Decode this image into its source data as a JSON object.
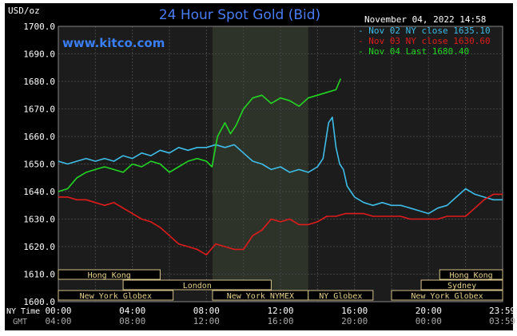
{
  "chart_data": {
    "type": "line",
    "title": "24 Hour Spot Gold (Bid)",
    "brand": "www.kitco.com",
    "ylabel": "USD/oz",
    "timestamp": "November 04, 2022 14:58",
    "ylim": [
      1600,
      1700
    ],
    "xlim": [
      0,
      24
    ],
    "y_ticks": [
      "1700.0",
      "1690.0",
      "1680.0",
      "1670.0",
      "1660.0",
      "1650.0",
      "1640.0",
      "1630.0",
      "1620.0",
      "1610.0",
      "1600.0"
    ],
    "y_tick_values": [
      1700,
      1690,
      1680,
      1670,
      1660,
      1650,
      1640,
      1630,
      1620,
      1610,
      1600
    ],
    "x_tick_hours": [
      0,
      4,
      8,
      12,
      16,
      20,
      23.98
    ],
    "x_ticks_ny": [
      "00:00",
      "04:00",
      "08:00",
      "12:00",
      "16:00",
      "20:00",
      "23:59"
    ],
    "x_ticks_gmt": [
      "04:00",
      "08:00",
      "12:00",
      "16:00",
      "20:00",
      "00:00",
      "03:59"
    ],
    "axis_row_labels": {
      "ny": "NY Time",
      "gmt": "GMT"
    },
    "shaded_region": {
      "start": 8.33,
      "end": 13.5,
      "label": "New York NYMEX"
    },
    "grid": true,
    "legend_position": "top-right",
    "legend": [
      {
        "label": "Nov 02 NY close 1635.10",
        "color": "#3dbde8"
      },
      {
        "label": "Nov 03 NY close 1630.60",
        "color": "#e01b1b"
      },
      {
        "label": "Nov 04 Last 1680.40",
        "color": "#22d622"
      }
    ],
    "sessions": [
      {
        "label": "Hong Kong",
        "start": 0,
        "end": 5.5,
        "row": 0
      },
      {
        "label": "London",
        "start": 3.5,
        "end": 11.5,
        "row": 1
      },
      {
        "label": "New York Globex",
        "start": 0,
        "end": 6.2,
        "row": 2
      },
      {
        "label": "New York NYMEX",
        "start": 8.33,
        "end": 13.5,
        "row": 2
      },
      {
        "label": "NY Globex",
        "start": 13.5,
        "end": 17,
        "row": 2
      },
      {
        "label": "Hong Kong",
        "start": 20.6,
        "end": 24,
        "row": 0
      },
      {
        "label": "Sydney",
        "start": 19.6,
        "end": 24,
        "row": 1
      },
      {
        "label": "New York Globex",
        "start": 18,
        "end": 24,
        "row": 2
      }
    ],
    "series": [
      {
        "name": "Nov 02 NY close 1635.10",
        "color": "#3dbde8",
        "x": [
          0,
          0.5,
          1,
          1.5,
          2,
          2.5,
          3,
          3.5,
          4,
          4.5,
          5,
          5.5,
          6,
          6.5,
          7,
          7.5,
          8,
          8.5,
          9,
          9.5,
          10,
          10.5,
          11,
          11.5,
          12,
          12.5,
          13,
          13.5,
          14,
          14.3,
          14.6,
          14.8,
          15,
          15.2,
          15.4,
          15.6,
          15.8,
          16,
          16.5,
          17,
          17.5,
          18,
          18.5,
          19,
          19.5,
          20,
          20.5,
          21,
          21.5,
          22,
          22.5,
          23,
          23.5,
          24
        ],
        "y": [
          1651,
          1650,
          1651,
          1652,
          1651,
          1652,
          1651,
          1653,
          1652,
          1654,
          1653,
          1655,
          1654,
          1656,
          1655,
          1656,
          1656,
          1657,
          1656,
          1657,
          1654,
          1651,
          1650,
          1648,
          1649,
          1647,
          1648,
          1647,
          1649,
          1652,
          1665,
          1667,
          1656,
          1650,
          1648,
          1642,
          1640,
          1638,
          1636,
          1635,
          1636,
          1635,
          1635,
          1634,
          1633,
          1632,
          1634,
          1635,
          1638,
          1641,
          1639,
          1638,
          1637,
          1637
        ]
      },
      {
        "name": "Nov 03 NY close 1630.60",
        "color": "#e01b1b",
        "x": [
          0,
          0.5,
          1,
          1.5,
          2,
          2.5,
          3,
          3.5,
          4,
          4.5,
          5,
          5.5,
          6,
          6.5,
          7,
          7.5,
          8,
          8.5,
          9,
          9.5,
          10,
          10.5,
          11,
          11.5,
          12,
          12.5,
          13,
          13.5,
          14,
          14.5,
          15,
          15.5,
          16,
          16.5,
          17,
          17.5,
          18,
          18.5,
          19,
          19.5,
          20,
          20.5,
          21,
          21.5,
          22,
          22.5,
          23,
          23.5,
          24
        ],
        "y": [
          1638,
          1638,
          1637,
          1637,
          1636,
          1635,
          1636,
          1634,
          1632,
          1630,
          1629,
          1627,
          1624,
          1621,
          1620,
          1619,
          1617,
          1621,
          1620,
          1619,
          1619,
          1624,
          1626,
          1630,
          1629,
          1630,
          1628,
          1628,
          1629,
          1631,
          1631,
          1632,
          1632,
          1632,
          1631,
          1631,
          1631,
          1631,
          1630,
          1630,
          1630,
          1630,
          1631,
          1631,
          1631,
          1634,
          1637,
          1639,
          1639
        ]
      },
      {
        "name": "Nov 04 Last 1680.40",
        "color": "#22d622",
        "x": [
          0,
          0.5,
          1,
          1.5,
          2,
          2.5,
          3,
          3.5,
          4,
          4.5,
          5,
          5.5,
          6,
          6.5,
          7,
          7.5,
          8,
          8.3,
          8.6,
          9,
          9.3,
          9.6,
          10,
          10.5,
          11,
          11.5,
          12,
          12.5,
          13,
          13.5,
          14,
          14.5,
          15,
          15.25
        ],
        "y": [
          1640,
          1641,
          1645,
          1647,
          1648,
          1649,
          1648,
          1647,
          1650,
          1649,
          1651,
          1650,
          1647,
          1649,
          1651,
          1652,
          1651,
          1649,
          1660,
          1665,
          1661,
          1664,
          1670,
          1674,
          1675,
          1672,
          1674,
          1673,
          1671,
          1674,
          1675,
          1676,
          1677,
          1681
        ]
      }
    ]
  }
}
